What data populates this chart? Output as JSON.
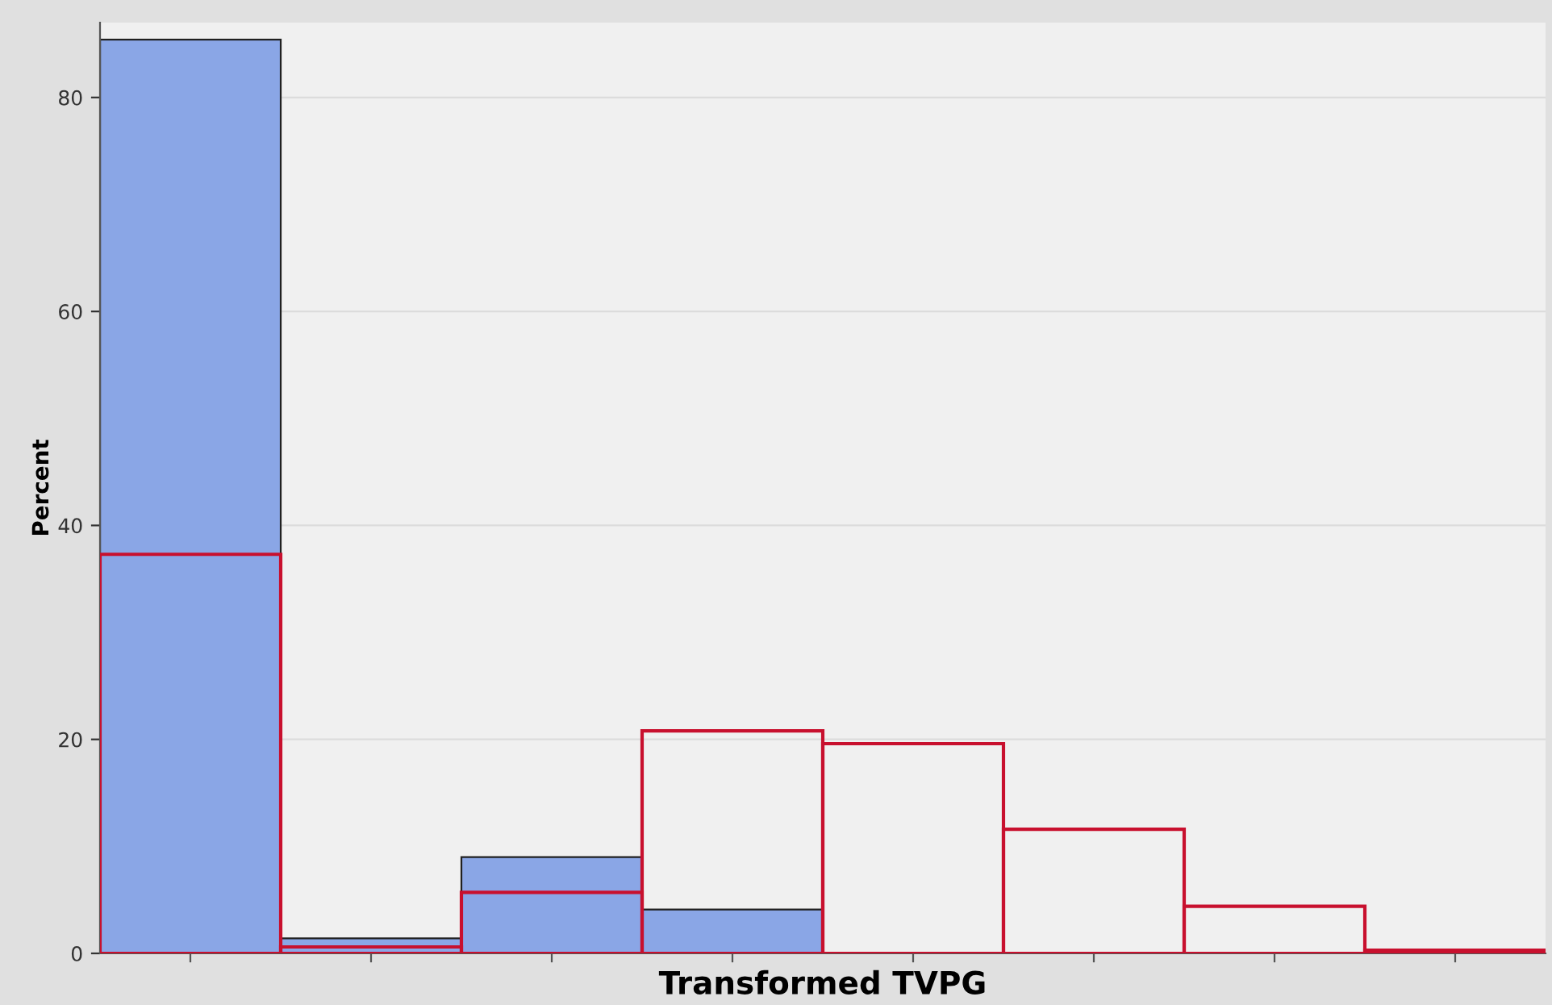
{
  "chart_data": {
    "type": "bar",
    "xlabel": "Transformed TVPG",
    "ylabel": "Percent",
    "categories": [
      null,
      null,
      null,
      null,
      null,
      null,
      null,
      null
    ],
    "series": [
      {
        "color": "#8aa6e6",
        "values": [
          85.4,
          1.4,
          9.0,
          4.1,
          null,
          null,
          null,
          null
        ]
      },
      {
        "color": "#c8102e",
        "values": [
          37.3,
          0.6,
          5.7,
          20.8,
          19.6,
          11.6,
          4.4,
          0.3
        ]
      }
    ],
    "ylim": [
      0,
      87
    ],
    "yticks": [
      0,
      20,
      40,
      60,
      80
    ],
    "grid": "y"
  }
}
